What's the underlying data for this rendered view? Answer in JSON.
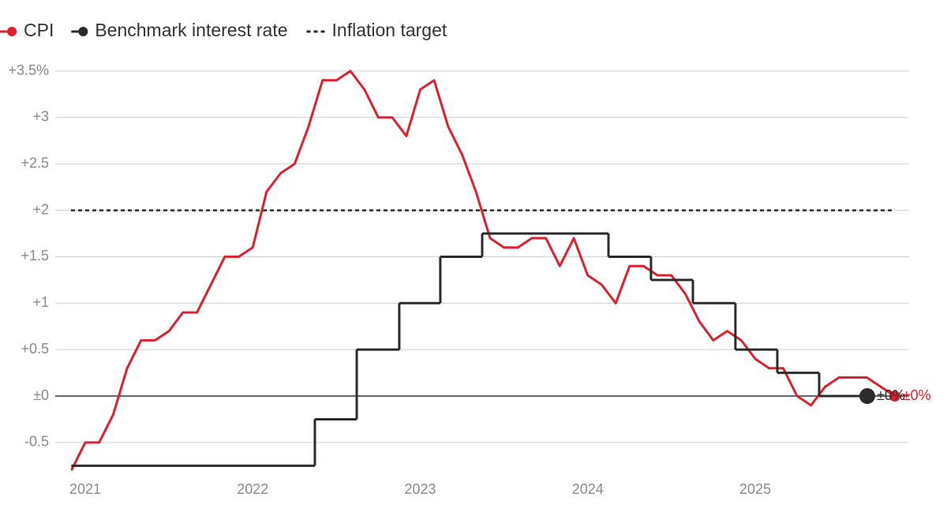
{
  "chart_data": {
    "type": "line",
    "xlim": [
      2020.821,
      2025.919
    ],
    "xticks": [
      2021,
      2022,
      2023,
      2024,
      2025
    ],
    "ylim": [
      -0.8,
      3.5
    ],
    "yticks": [
      {
        "value": -0.5,
        "label": "-0.5"
      },
      {
        "value": 0,
        "label": "±0"
      },
      {
        "value": 0.5,
        "label": "+0.5"
      },
      {
        "value": 1,
        "label": "+1"
      },
      {
        "value": 1.5,
        "label": "+1.5"
      },
      {
        "value": 2,
        "label": "+2"
      },
      {
        "value": 2.5,
        "label": "+2.5"
      },
      {
        "value": 3,
        "label": "+3"
      },
      {
        "value": 3.5,
        "label": "+3.5%"
      }
    ],
    "grid": true,
    "legend": "top-left",
    "series": [
      {
        "name": "CPI",
        "color": "#e0202e",
        "step": false,
        "end_label": "±0%",
        "x": [
          2020.917,
          2021,
          2021.083,
          2021.167,
          2021.25,
          2021.333,
          2021.417,
          2021.5,
          2021.583,
          2021.667,
          2021.75,
          2021.833,
          2021.917,
          2022,
          2022.083,
          2022.167,
          2022.25,
          2022.333,
          2022.417,
          2022.5,
          2022.583,
          2022.667,
          2022.75,
          2022.833,
          2022.917,
          2023,
          2023.083,
          2023.167,
          2023.25,
          2023.333,
          2023.417,
          2023.5,
          2023.583,
          2023.667,
          2023.75,
          2023.833,
          2023.917,
          2024,
          2024.083,
          2024.167,
          2024.25,
          2024.333,
          2024.417,
          2024.5,
          2024.583,
          2024.667,
          2024.75,
          2024.833,
          2024.917,
          2025,
          2025.083,
          2025.167,
          2025.25,
          2025.333,
          2025.417,
          2025.5,
          2025.583,
          2025.667,
          2025.75,
          2025.833
        ],
        "values": [
          -0.8,
          -0.5,
          -0.5,
          -0.2,
          0.3,
          0.6,
          0.6,
          0.7,
          0.9,
          0.9,
          1.2,
          1.5,
          1.5,
          1.6,
          2.2,
          2.4,
          2.5,
          2.9,
          3.4,
          3.4,
          3.5,
          3.3,
          3.0,
          3.0,
          2.8,
          3.3,
          3.4,
          2.9,
          2.6,
          2.2,
          1.7,
          1.6,
          1.6,
          1.7,
          1.7,
          1.4,
          1.7,
          1.3,
          1.2,
          1.0,
          1.4,
          1.4,
          1.3,
          1.3,
          1.1,
          0.8,
          0.6,
          0.7,
          0.6,
          0.4,
          0.3,
          0.3,
          0.0,
          -0.1,
          0.1,
          0.2,
          0.2,
          0.2,
          0.1,
          0.0
        ]
      },
      {
        "name": "Benchmark interest rate",
        "color": "#2b2b2b",
        "step": true,
        "end_label": "±0%",
        "x": [
          2020.917,
          2022.371,
          2022.621,
          2022.875,
          2023.12,
          2023.37,
          2024.124,
          2024.378,
          2024.628,
          2024.882,
          2025.132,
          2025.382,
          2025.669
        ],
        "values": [
          -0.75,
          -0.25,
          0.5,
          1,
          1.5,
          1.75,
          1.5,
          1.25,
          1,
          0.5,
          0.25,
          0,
          0
        ]
      }
    ],
    "target": {
      "name": "Inflation target",
      "color": "#2b2b2b",
      "value": 2
    }
  }
}
